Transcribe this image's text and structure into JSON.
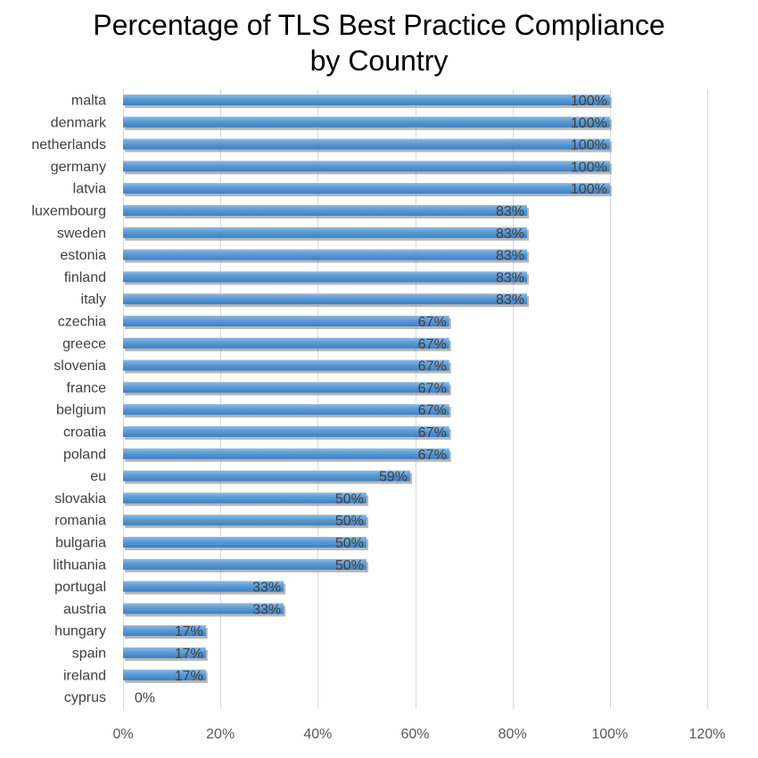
{
  "chart_data": {
    "type": "bar",
    "orientation": "horizontal",
    "title_lines": [
      "Percentage of TLS Best Practice Compliance",
      "by Country"
    ],
    "categories": [
      "malta",
      "denmark",
      "netherlands",
      "germany",
      "latvia",
      "luxembourg",
      "sweden",
      "estonia",
      "finland",
      "italy",
      "czechia",
      "greece",
      "slovenia",
      "france",
      "belgium",
      "croatia",
      "poland",
      "eu",
      "slovakia",
      "romania",
      "bulgaria",
      "lithuania",
      "portugal",
      "austria",
      "hungary",
      "spain",
      "ireland",
      "cyprus"
    ],
    "values": [
      100,
      100,
      100,
      100,
      100,
      83,
      83,
      83,
      83,
      83,
      67,
      67,
      67,
      67,
      67,
      67,
      67,
      59,
      50,
      50,
      50,
      50,
      33,
      33,
      17,
      17,
      17,
      0
    ],
    "data_labels": [
      "100%",
      "100%",
      "100%",
      "100%",
      "100%",
      "83%",
      "83%",
      "83%",
      "83%",
      "83%",
      "67%",
      "67%",
      "67%",
      "67%",
      "67%",
      "67%",
      "67%",
      "59%",
      "50%",
      "50%",
      "50%",
      "50%",
      "33%",
      "33%",
      "17%",
      "17%",
      "17%",
      "0%"
    ],
    "xlim": [
      0,
      120
    ],
    "x_ticks": [
      0,
      20,
      40,
      60,
      80,
      100,
      120
    ],
    "x_tick_labels": [
      "0%",
      "20%",
      "40%",
      "60%",
      "80%",
      "100%",
      "120%"
    ],
    "grid": true,
    "legend": "none",
    "bar_color": "#5b9bd5"
  }
}
